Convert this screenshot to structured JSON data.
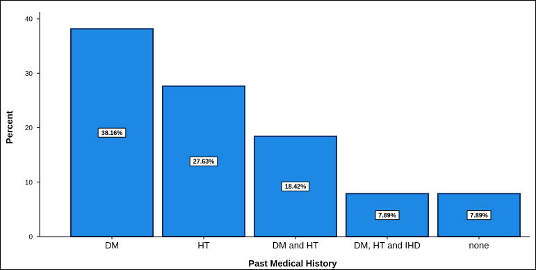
{
  "colors": {
    "bar_fill": "#1e88e5",
    "bar_stroke": "#0d2d6b",
    "axis": "#000000",
    "label_box": "#ffffff"
  },
  "chart_data": {
    "type": "bar",
    "title": "",
    "xlabel": "Past Medical History",
    "ylabel": "Percent",
    "categories": [
      "DM",
      "HT",
      "DM and HT",
      "DM, HT and IHD",
      "none"
    ],
    "values": [
      38.16,
      27.63,
      18.42,
      7.89,
      7.89
    ],
    "data_labels": [
      "38.16%",
      "27.63%",
      "18.42%",
      "7.89%",
      "7.89%"
    ],
    "ylim": [
      0,
      40
    ],
    "yticks": [
      0,
      10,
      20,
      30,
      40
    ],
    "ytick_labels": [
      "0",
      "10",
      "20",
      "30",
      "40"
    ],
    "grid": false,
    "legend": "none"
  }
}
